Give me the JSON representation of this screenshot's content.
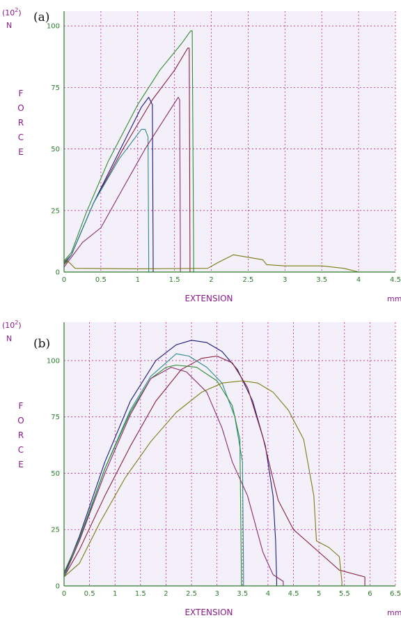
{
  "chart_data": [
    {
      "type": "line",
      "panel_label": "(a)",
      "xlabel": "EXTENSION",
      "xunit": "mm",
      "ylabel": "F O R C E",
      "yunit_scale": "(10",
      "yunit_exp": "2",
      "yunit_close": ")",
      "yunit_name": "N",
      "xlim": [
        0,
        4.5
      ],
      "ylim": [
        0,
        106
      ],
      "xticks": [
        0,
        0.5,
        1,
        1.5,
        2,
        2.5,
        3,
        3.5,
        4,
        4.5
      ],
      "yticks": [
        0,
        25,
        50,
        75,
        100
      ],
      "grid": true,
      "series": [
        {
          "color": "#2e8b2e",
          "points": [
            [
              0,
              4.5
            ],
            [
              0.1,
              8
            ],
            [
              0.3,
              24
            ],
            [
              0.6,
              45
            ],
            [
              1.0,
              68
            ],
            [
              1.3,
              82
            ],
            [
              1.6,
              93
            ],
            [
              1.72,
              98
            ],
            [
              1.74,
              98
            ],
            [
              1.76,
              5
            ],
            [
              1.76,
              0
            ]
          ]
        },
        {
          "color": "#8b1a3a",
          "points": [
            [
              0,
              4
            ],
            [
              0.1,
              7
            ],
            [
              0.4,
              28
            ],
            [
              0.8,
              50
            ],
            [
              1.2,
              70
            ],
            [
              1.5,
              82
            ],
            [
              1.68,
              91
            ],
            [
              1.7,
              91
            ],
            [
              1.71,
              5
            ],
            [
              1.71,
              0
            ]
          ]
        },
        {
          "color": "#1a1a7a",
          "points": [
            [
              0,
              3
            ],
            [
              0.1,
              7
            ],
            [
              0.4,
              28
            ],
            [
              0.8,
              52
            ],
            [
              1.05,
              67
            ],
            [
              1.15,
              71
            ],
            [
              1.2,
              68
            ],
            [
              1.21,
              5
            ],
            [
              1.21,
              0
            ]
          ]
        },
        {
          "color": "#2a8a8a",
          "points": [
            [
              0,
              3.5
            ],
            [
              0.1,
              7
            ],
            [
              0.4,
              28
            ],
            [
              0.75,
              46
            ],
            [
              0.95,
              54
            ],
            [
              1.05,
              58
            ],
            [
              1.1,
              58
            ],
            [
              1.14,
              55
            ],
            [
              1.15,
              5
            ],
            [
              1.15,
              0
            ]
          ]
        },
        {
          "color": "#8a2a6a",
          "points": [
            [
              0,
              2
            ],
            [
              0.25,
              12
            ],
            [
              0.5,
              18
            ],
            [
              0.8,
              34
            ],
            [
              1.1,
              50
            ],
            [
              1.4,
              64
            ],
            [
              1.55,
              71
            ],
            [
              1.57,
              70
            ],
            [
              1.58,
              5
            ],
            [
              1.58,
              0
            ]
          ]
        },
        {
          "color": "#7a7a10",
          "points": [
            [
              0,
              3
            ],
            [
              0.05,
              4.5
            ],
            [
              0.15,
              1.5
            ],
            [
              1.0,
              1.3
            ],
            [
              1.95,
              1.5
            ],
            [
              2.1,
              4
            ],
            [
              2.3,
              7
            ],
            [
              2.5,
              6
            ],
            [
              2.7,
              5
            ],
            [
              2.75,
              3
            ],
            [
              3.0,
              2.5
            ],
            [
              3.5,
              2.5
            ],
            [
              3.8,
              1.5
            ],
            [
              4.0,
              0
            ]
          ]
        }
      ]
    },
    {
      "type": "line",
      "panel_label": "(b)",
      "xlabel": "EXTENSION",
      "xunit": "mm",
      "ylabel": "F O R C E",
      "yunit_scale": "(10",
      "yunit_exp": "2",
      "yunit_close": ")",
      "yunit_name": "N",
      "xlim": [
        0,
        6.5
      ],
      "ylim": [
        0,
        117
      ],
      "xticks": [
        0,
        0.5,
        1,
        1.5,
        2,
        2.5,
        3,
        3.5,
        4,
        4.5,
        5,
        5.5,
        6,
        6.5
      ],
      "yticks": [
        0,
        25,
        50,
        75,
        100
      ],
      "grid": true,
      "series": [
        {
          "color": "#1a1a7a",
          "points": [
            [
              0,
              5
            ],
            [
              0.3,
              22
            ],
            [
              0.8,
              55
            ],
            [
              1.3,
              82
            ],
            [
              1.8,
              100
            ],
            [
              2.2,
              107
            ],
            [
              2.5,
              109
            ],
            [
              2.8,
              108
            ],
            [
              3.1,
              104
            ],
            [
              3.4,
              96
            ],
            [
              3.7,
              82
            ],
            [
              3.95,
              62
            ],
            [
              4.1,
              40
            ],
            [
              4.15,
              20
            ],
            [
              4.17,
              2
            ],
            [
              4.17,
              0
            ]
          ]
        },
        {
          "color": "#8b1a3a",
          "points": [
            [
              0,
              4
            ],
            [
              0.3,
              16
            ],
            [
              0.8,
              40
            ],
            [
              1.3,
              62
            ],
            [
              1.8,
              82
            ],
            [
              2.3,
              96
            ],
            [
              2.7,
              101
            ],
            [
              3.0,
              102
            ],
            [
              3.3,
              99
            ],
            [
              3.6,
              88
            ],
            [
              3.9,
              66
            ],
            [
              4.2,
              38
            ],
            [
              4.5,
              25
            ],
            [
              5.0,
              15
            ],
            [
              5.4,
              7
            ],
            [
              5.9,
              4
            ],
            [
              5.9,
              0
            ]
          ]
        },
        {
          "color": "#2a8a8a",
          "points": [
            [
              0,
              4
            ],
            [
              0.3,
              20
            ],
            [
              0.8,
              52
            ],
            [
              1.3,
              78
            ],
            [
              1.7,
              93
            ],
            [
              2.0,
              99
            ],
            [
              2.2,
              103
            ],
            [
              2.45,
              102
            ],
            [
              2.8,
              97
            ],
            [
              3.1,
              90
            ],
            [
              3.35,
              75
            ],
            [
              3.5,
              55
            ],
            [
              3.52,
              5
            ],
            [
              3.52,
              0
            ]
          ]
        },
        {
          "color": "#2e8b2e",
          "points": [
            [
              0,
              6
            ],
            [
              0.3,
              21
            ],
            [
              0.8,
              52
            ],
            [
              1.3,
              77
            ],
            [
              1.7,
              92
            ],
            [
              2.0,
              97
            ],
            [
              2.2,
              98
            ],
            [
              2.6,
              97
            ],
            [
              3.0,
              91
            ],
            [
              3.3,
              80
            ],
            [
              3.45,
              65
            ],
            [
              3.48,
              2
            ],
            [
              3.48,
              0
            ]
          ]
        },
        {
          "color": "#8a2a6a",
          "points": [
            [
              0,
              5
            ],
            [
              0.3,
              20
            ],
            [
              0.8,
              50
            ],
            [
              1.3,
              76
            ],
            [
              1.7,
              92
            ],
            [
              2.1,
              97
            ],
            [
              2.4,
              95
            ],
            [
              2.8,
              86
            ],
            [
              3.1,
              70
            ],
            [
              3.3,
              55
            ],
            [
              3.6,
              40
            ],
            [
              3.9,
              15
            ],
            [
              4.1,
              5
            ],
            [
              4.3,
              2
            ],
            [
              4.3,
              0
            ]
          ]
        },
        {
          "color": "#7a7a10",
          "points": [
            [
              0,
              4
            ],
            [
              0.3,
              10
            ],
            [
              0.7,
              28
            ],
            [
              1.2,
              48
            ],
            [
              1.7,
              64
            ],
            [
              2.2,
              77
            ],
            [
              2.7,
              86
            ],
            [
              3.1,
              90
            ],
            [
              3.5,
              91
            ],
            [
              3.8,
              90
            ],
            [
              4.1,
              86
            ],
            [
              4.4,
              78
            ],
            [
              4.7,
              65
            ],
            [
              4.9,
              40
            ],
            [
              4.95,
              20
            ],
            [
              5.2,
              17
            ],
            [
              5.4,
              13
            ],
            [
              5.45,
              2
            ],
            [
              5.45,
              0
            ]
          ]
        }
      ]
    }
  ]
}
